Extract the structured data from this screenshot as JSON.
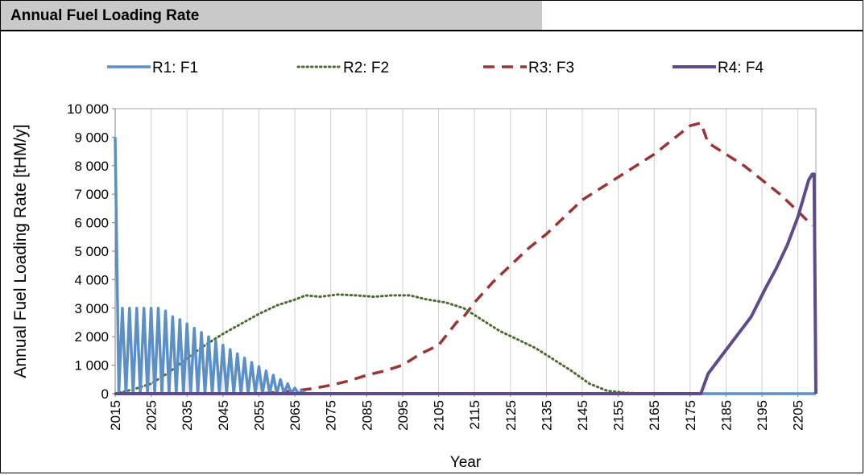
{
  "panel": {
    "title": "Annual Fuel Loading Rate"
  },
  "colors": {
    "R1": "#5b8fc7",
    "R2": "#4e6b31",
    "R3": "#9b3535",
    "R4": "#5e4b8b"
  },
  "chart_data": {
    "type": "line",
    "xlabel": "Year",
    "ylabel": "Annual Fuel Loading Rate [tHM/y]",
    "xlim": [
      2015,
      2210
    ],
    "ylim": [
      0,
      10000
    ],
    "x_ticks": [
      2015,
      2025,
      2035,
      2045,
      2055,
      2065,
      2075,
      2085,
      2095,
      2105,
      2115,
      2125,
      2135,
      2145,
      2155,
      2165,
      2175,
      2185,
      2195,
      2205
    ],
    "x_tick_labels": [
      "2015",
      "2025",
      "2035",
      "2045",
      "2055",
      "2065",
      "2075",
      "2085",
      "2095",
      "2105",
      "2115",
      "2125",
      "2135",
      "2145",
      "2155",
      "2165",
      "2175",
      "2185",
      "2195",
      "2205"
    ],
    "y_ticks": [
      0,
      1000,
      2000,
      3000,
      4000,
      5000,
      6000,
      7000,
      8000,
      9000,
      10000
    ],
    "y_tick_labels": [
      "0",
      "1 000",
      "2 000",
      "3 000",
      "4 000",
      "5 000",
      "6 000",
      "7 000",
      "8 000",
      "9 000",
      "10 000"
    ],
    "grid": "vertical",
    "legend_position": "top",
    "series": [
      {
        "name": "R1: F1",
        "style": "solid",
        "note_oscillating": true,
        "x": [
          2015,
          2016,
          2017,
          2018,
          2019,
          2020,
          2021,
          2022,
          2023,
          2024,
          2025,
          2026,
          2027,
          2028,
          2029,
          2030,
          2031,
          2032,
          2033,
          2034,
          2035,
          2036,
          2037,
          2038,
          2039,
          2040,
          2041,
          2042,
          2043,
          2044,
          2045,
          2046,
          2047,
          2048,
          2049,
          2050,
          2051,
          2052,
          2053,
          2054,
          2055,
          2056,
          2057,
          2058,
          2059,
          2060,
          2061,
          2062,
          2063,
          2064,
          2065,
          2066,
          2067,
          2068,
          2069,
          2070,
          2210
        ],
        "y": [
          9000,
          0,
          3000,
          0,
          3000,
          0,
          3000,
          0,
          3000,
          0,
          3000,
          0,
          3000,
          0,
          2900,
          0,
          2700,
          0,
          2600,
          0,
          2450,
          0,
          2300,
          0,
          2150,
          0,
          2000,
          0,
          1850,
          0,
          1700,
          0,
          1550,
          0,
          1400,
          0,
          1250,
          0,
          1100,
          0,
          950,
          0,
          800,
          0,
          650,
          0,
          500,
          0,
          350,
          0,
          200,
          0,
          100,
          0,
          0,
          0,
          0
        ]
      },
      {
        "name": "R2: F2",
        "style": "dotted",
        "x": [
          2015,
          2020,
          2025,
          2030,
          2035,
          2040,
          2045,
          2050,
          2055,
          2060,
          2065,
          2068,
          2072,
          2077,
          2082,
          2087,
          2092,
          2097,
          2102,
          2107,
          2112,
          2117,
          2122,
          2127,
          2132,
          2137,
          2142,
          2147,
          2152,
          2157,
          2162,
          2210
        ],
        "y": [
          0,
          150,
          350,
          750,
          1250,
          1700,
          2100,
          2450,
          2800,
          3100,
          3300,
          3450,
          3400,
          3480,
          3450,
          3400,
          3450,
          3450,
          3300,
          3200,
          3000,
          2600,
          2200,
          1900,
          1600,
          1200,
          800,
          350,
          100,
          30,
          0,
          0
        ]
      },
      {
        "name": "R3: F3",
        "style": "dashed",
        "x": [
          2015,
          2055,
          2065,
          2070,
          2075,
          2080,
          2085,
          2090,
          2095,
          2100,
          2105,
          2110,
          2112,
          2115,
          2120,
          2125,
          2130,
          2135,
          2140,
          2145,
          2150,
          2155,
          2160,
          2165,
          2170,
          2175,
          2178,
          2180,
          2185,
          2190,
          2195,
          2200,
          2205,
          2209
        ],
        "y": [
          0,
          0,
          100,
          180,
          300,
          450,
          650,
          800,
          1000,
          1400,
          1700,
          2500,
          2700,
          3200,
          3900,
          4500,
          5100,
          5600,
          6200,
          6800,
          7200,
          7600,
          8000,
          8400,
          8900,
          9400,
          9500,
          8800,
          8400,
          8000,
          7500,
          7000,
          6400,
          5900
        ]
      },
      {
        "name": "R4: F4",
        "style": "solid",
        "x": [
          2015,
          2178,
          2180,
          2183,
          2186,
          2189,
          2192,
          2194,
          2196,
          2199,
          2202,
          2205,
          2208,
          2209,
          2209.5,
          2210
        ],
        "y": [
          0,
          0,
          700,
          1200,
          1700,
          2200,
          2700,
          3200,
          3700,
          4400,
          5200,
          6200,
          7500,
          7700,
          7700,
          0
        ]
      }
    ]
  }
}
